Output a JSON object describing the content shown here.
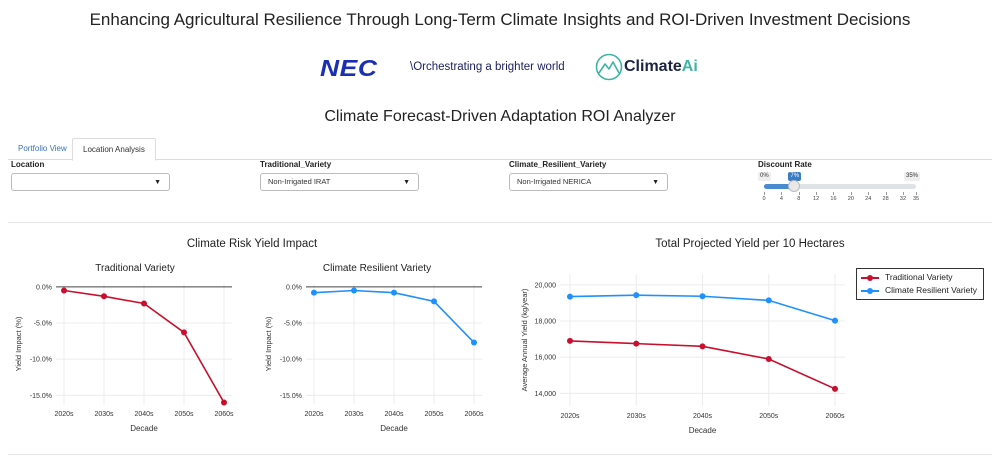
{
  "header": {
    "title": "Enhancing Agricultural Resilience Through Long-Term Climate Insights and ROI-Driven Investment Decisions",
    "nec_logo": "NEC",
    "nec_tagline": "\\Orchestrating a brighter world",
    "climateai_logo_main": "Climate",
    "climateai_logo_accent": "Ai"
  },
  "app_title": "Climate Forecast-Driven Adaptation ROI Analyzer",
  "tabs": [
    {
      "label": "Portfolio View",
      "active": false
    },
    {
      "label": "Location Analysis",
      "active": true
    }
  ],
  "controls": {
    "location": {
      "label": "Location",
      "value": ""
    },
    "traditional_variety": {
      "label": "Traditional_Variety",
      "value": "Non-Irrigated IRAT"
    },
    "resilient_variety": {
      "label": "Climate_Resilient_Variety",
      "value": "Non-Irrigated NERICA"
    },
    "discount_rate": {
      "label": "Discount Rate",
      "min_label": "0%",
      "max_label": "35%",
      "value_label": "7%",
      "min": 0,
      "max": 35,
      "value": 7,
      "ticks": [
        "0",
        "4",
        "8",
        "12",
        "16",
        "20",
        "24",
        "28",
        "32",
        "35"
      ]
    }
  },
  "icons": {
    "dropdown_caret": "caret-down-icon",
    "climateai": "climateai-mountain-icon"
  },
  "colors": {
    "traditional": "#c8102e",
    "resilient": "#1e90ff",
    "nec_blue": "#1b2fb3",
    "climateai_teal": "#3fb4a5",
    "tab_link": "#3a73b5",
    "slider_accent": "#3a7dc4"
  },
  "sections": {
    "risk_title": "Climate Risk Yield Impact",
    "yield_title": "Total Projected Yield per 10 Hectares"
  },
  "chart_data": [
    {
      "type": "line",
      "title": "Traditional Variety",
      "xlabel": "Decade",
      "ylabel": "Yield Impact (%)",
      "categories": [
        "2020s",
        "2030s",
        "2040s",
        "2050s",
        "2060s"
      ],
      "yticks": [
        "0.0%",
        "-5.0%",
        "-10.0%",
        "-15.0%"
      ],
      "ylim": [
        -16.2,
        0.4
      ],
      "series": [
        {
          "color": "#c8102e",
          "values": [
            -0.5,
            -1.3,
            -2.3,
            -6.3,
            -16.0
          ]
        }
      ]
    },
    {
      "type": "line",
      "title": "Climate Resilient Variety",
      "xlabel": "Decade",
      "ylabel": "Yield Impact (%)",
      "categories": [
        "2020s",
        "2030s",
        "2040s",
        "2050s",
        "2060s"
      ],
      "yticks": [
        "0.0%",
        "-5.0%",
        "-10.0%",
        "-15.0%"
      ],
      "ylim": [
        -16.2,
        0.4
      ],
      "series": [
        {
          "color": "#1e90ff",
          "values": [
            -0.8,
            -0.5,
            -0.8,
            -2.0,
            -7.7
          ]
        }
      ]
    },
    {
      "type": "line",
      "title": "",
      "xlabel": "Decade",
      "ylabel": "Average Annual Yield (kg/year)",
      "categories": [
        "2020s",
        "2030s",
        "2040s",
        "2050s",
        "2060s"
      ],
      "yticks": [
        "20,000",
        "18,000",
        "16,000",
        "14,000"
      ],
      "ylim": [
        13300,
        20600
      ],
      "legend": "top-right",
      "series": [
        {
          "name": "Traditional Variety",
          "color": "#c8102e",
          "values": [
            16900,
            16750,
            16600,
            15900,
            14250
          ]
        },
        {
          "name": "Climate Resilient Variety",
          "color": "#1e90ff",
          "values": [
            19350,
            19430,
            19370,
            19140,
            18020
          ]
        }
      ]
    }
  ]
}
